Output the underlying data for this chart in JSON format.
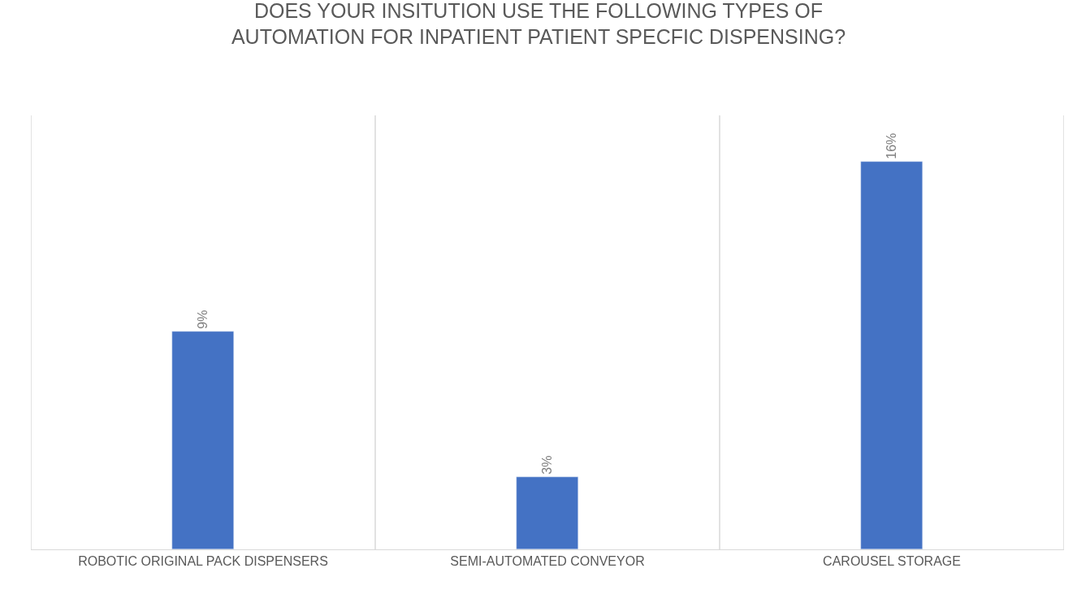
{
  "chart_data": {
    "type": "bar",
    "title": "DOES YOUR INSITUTION USE THE FOLLOWING TYPES OF\nAUTOMATION FOR INPATIENT PATIENT SPECFIC DISPENSING?",
    "categories": [
      "ROBOTIC ORIGINAL PACK DISPENSERS",
      "SEMI-AUTOMATED CONVEYOR",
      "CAROUSEL STORAGE"
    ],
    "values": [
      9,
      3,
      16
    ],
    "value_labels": [
      "9%",
      "3%",
      "16%"
    ],
    "color": "#4472c4",
    "grid": "x",
    "legend": false,
    "tick_labels": "x"
  }
}
